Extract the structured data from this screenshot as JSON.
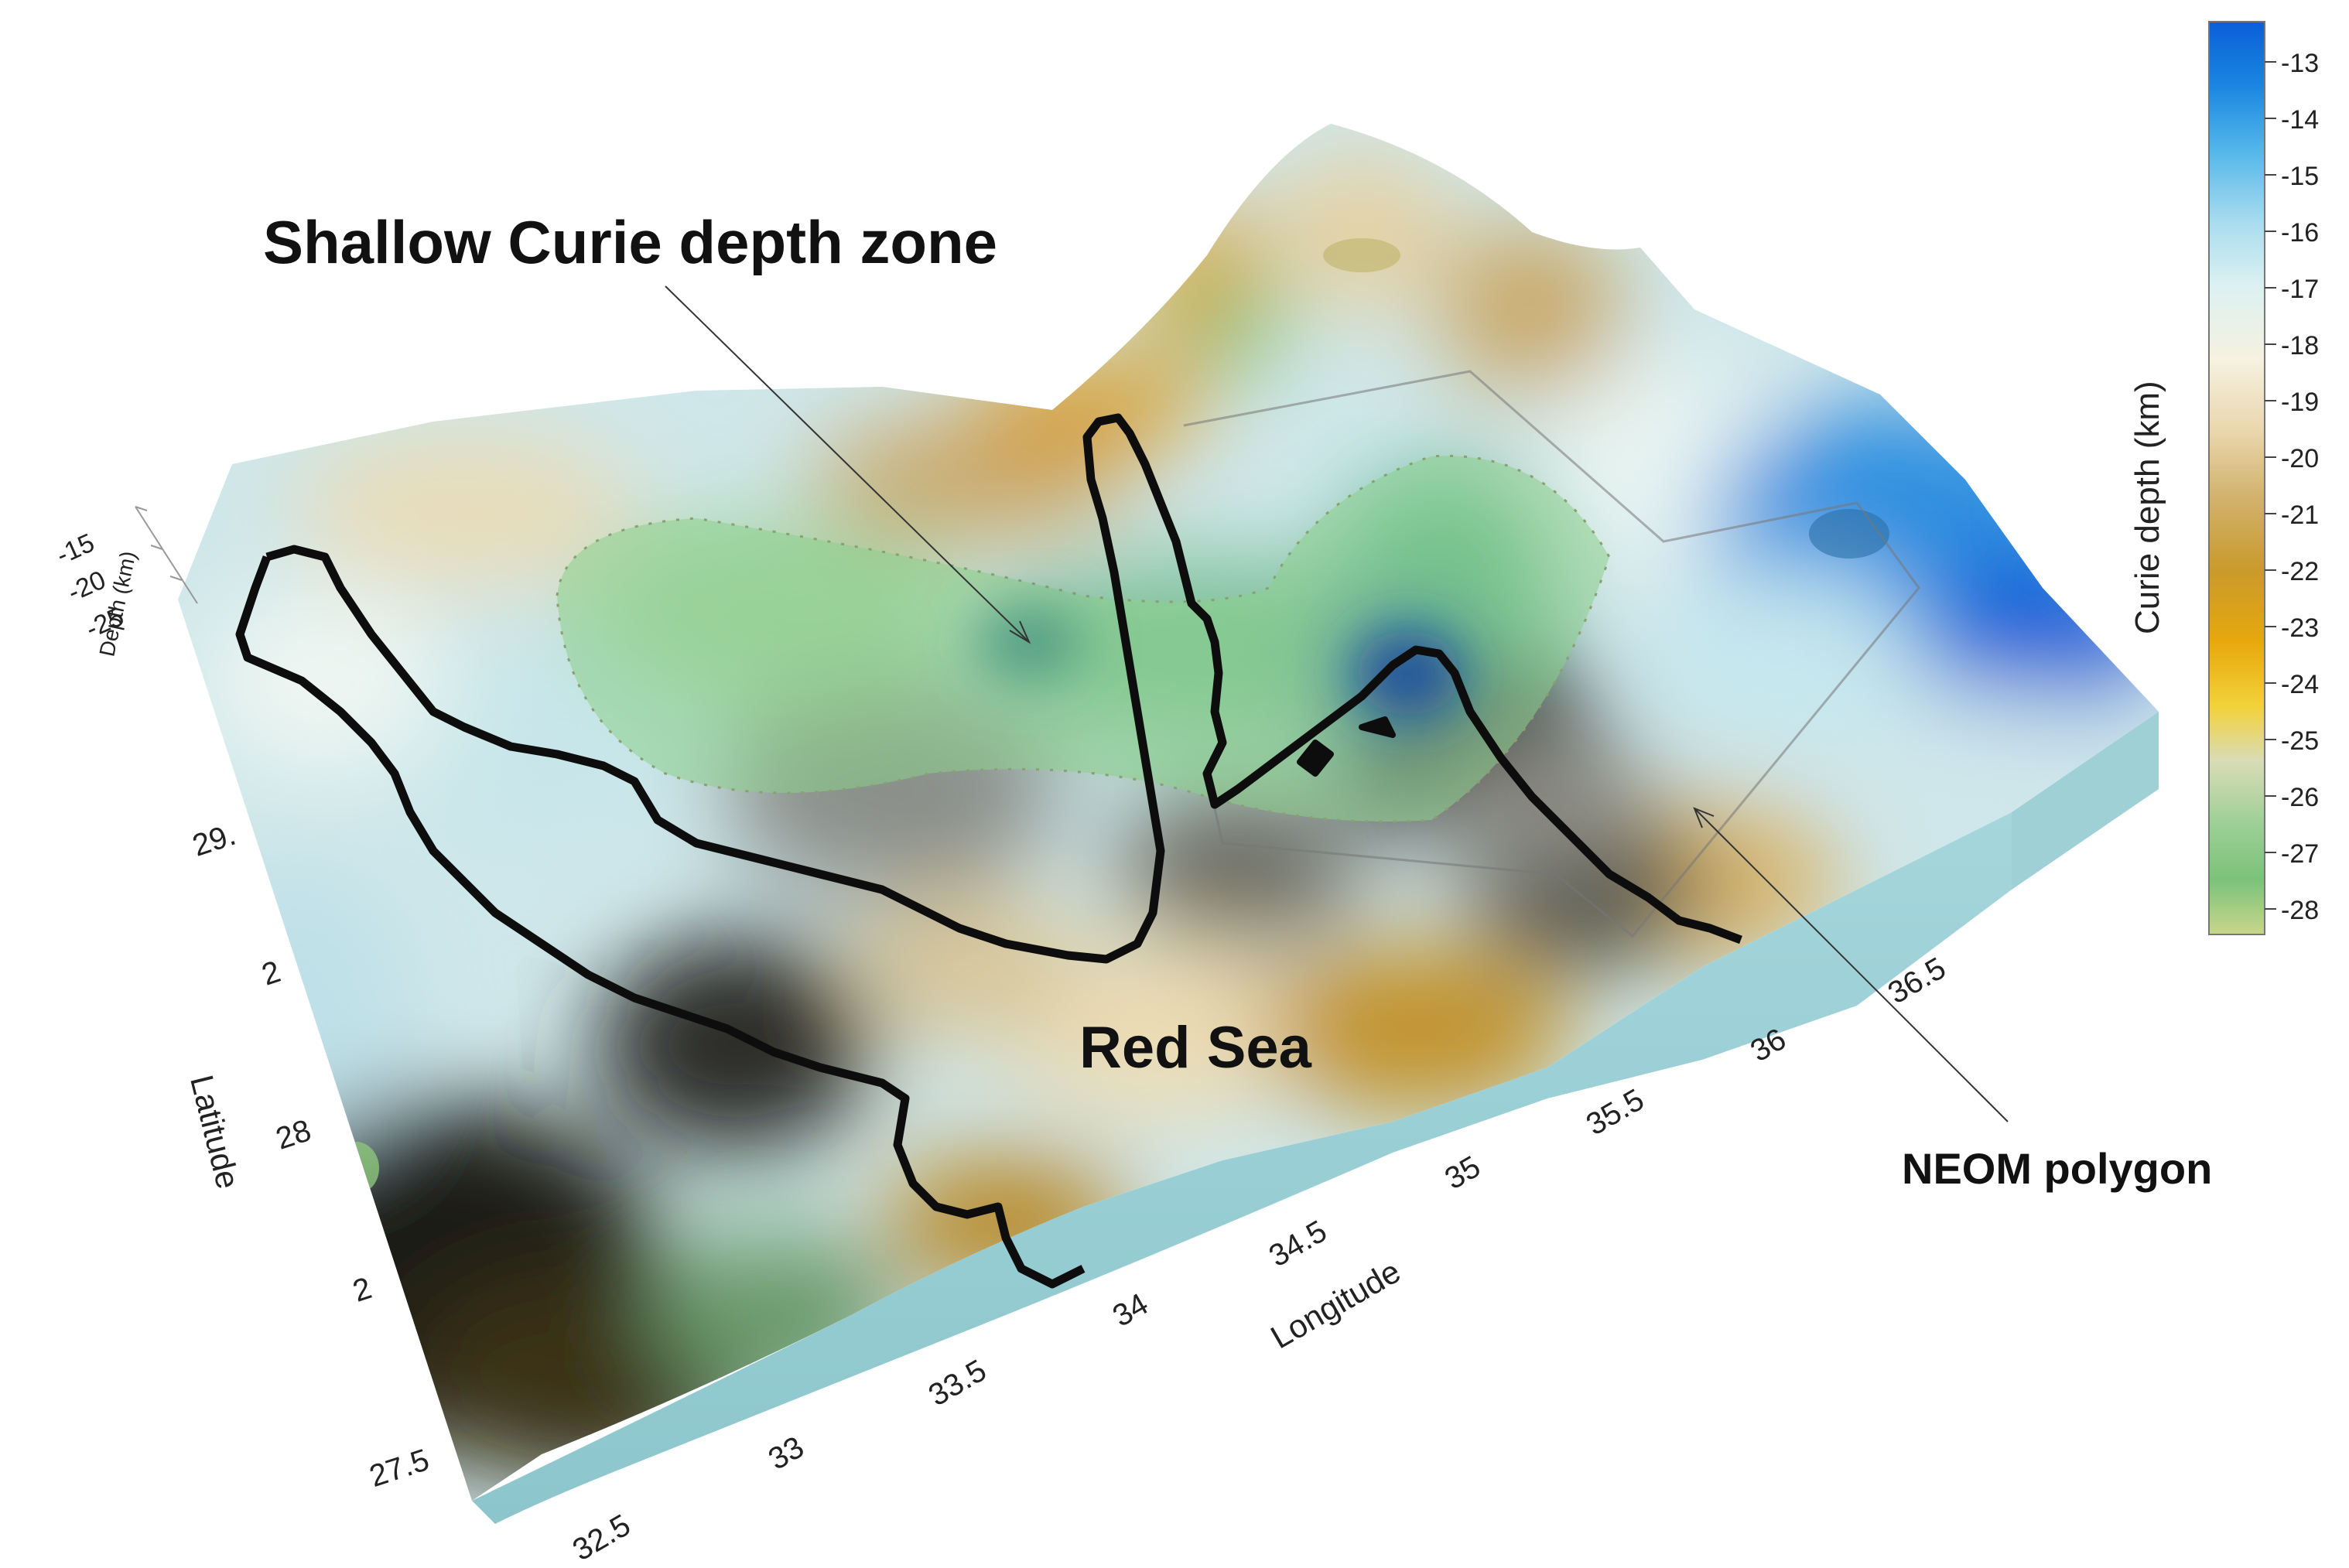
{
  "annotations": {
    "shallow_zone": "Shallow Curie depth zone",
    "red_sea": "Red Sea",
    "neom": "NEOM polygon"
  },
  "axes": {
    "depth_label": "Depth (km)",
    "depth_ticks": [
      "-15",
      "-20",
      "-25"
    ],
    "latitude_label": "Latitude",
    "latitude_ticks": [
      "29.",
      "2",
      "28",
      "2",
      "27.5"
    ],
    "longitude_label": "Longitude",
    "longitude_ticks": [
      "32.5",
      "33",
      "33.5",
      "34",
      "34.5",
      "35",
      "35.5",
      "36",
      "36.5"
    ]
  },
  "colorbar": {
    "label": "Curie depth (km)",
    "ticks": [
      "-13",
      "-14",
      "-15",
      "-16",
      "-17",
      "-18",
      "-19",
      "-20",
      "-21",
      "-22",
      "-23",
      "-24",
      "-25",
      "-26",
      "-27",
      "-28"
    ],
    "colors": [
      "#0a5fd8",
      "#1a86e0",
      "#52b6ea",
      "#a9dcee",
      "#dcf1f2",
      "#eef7f2",
      "#f6f1e0",
      "#e9d6ac",
      "#d2b26e",
      "#c99a2c",
      "#e8a80c",
      "#f2d23a",
      "#d9dcb6",
      "#9ccf95",
      "#7cc27a",
      "#c8d68c"
    ]
  }
}
